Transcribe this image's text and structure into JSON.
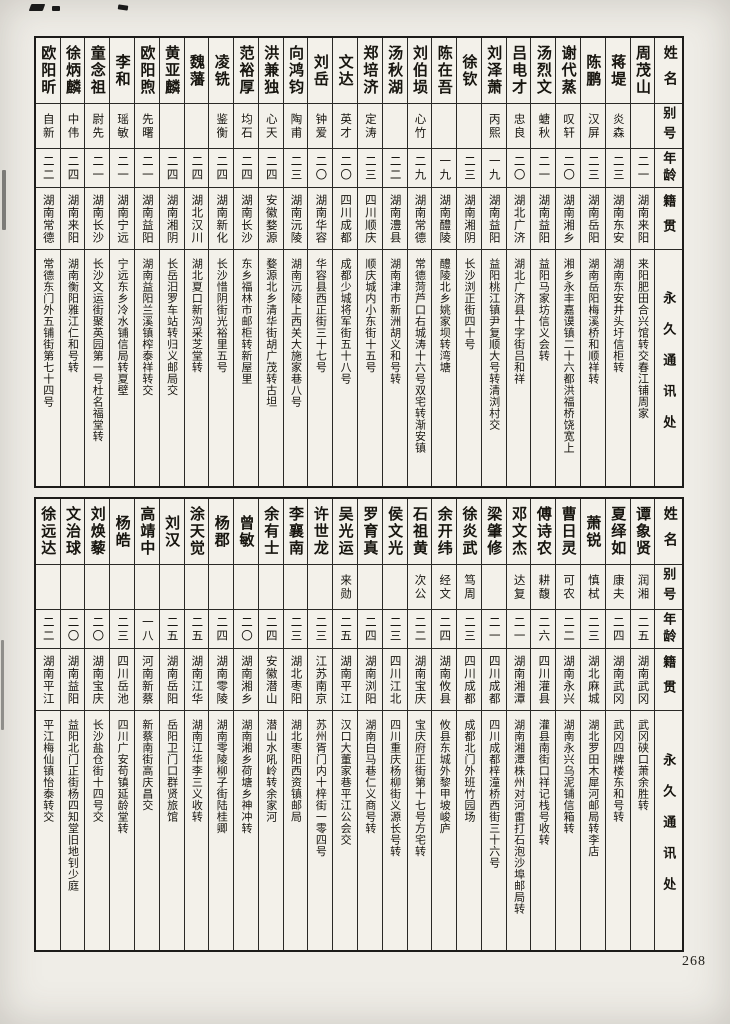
{
  "page": {
    "number": "268"
  },
  "headers": {
    "name": "姓名",
    "alias": "别号",
    "age": "年龄",
    "origin": "籍贯",
    "address": "永久通讯处"
  },
  "tables": [
    {
      "entries": [
        {
          "name": "周茂山",
          "alias": "",
          "age": "二一",
          "origin": "湖南来阳",
          "address": "来阳肥田合兴馆转交春江铺周家"
        },
        {
          "name": "蒋堤",
          "alias": "炎森",
          "age": "二三",
          "origin": "湖南东安",
          "address": "湖南东安井头圩信柜转"
        },
        {
          "name": "陈鹏",
          "alias": "汉屏",
          "age": "二三",
          "origin": "湖南岳阳",
          "address": "湖南岳阳梅溪桥和顺祥转"
        },
        {
          "name": "谢代蒸",
          "alias": "叹轩",
          "age": "二〇",
          "origin": "湖南湘乡",
          "address": "湘乡永丰嘉谟镇二十六都洪福桥饶宽上"
        },
        {
          "name": "汤烈文",
          "alias": "螗秋",
          "age": "二一",
          "origin": "湖南益阳",
          "address": "益阳马家坊信义会转"
        },
        {
          "name": "吕电才",
          "alias": "忠良",
          "age": "二〇",
          "origin": "湖北广济",
          "address": "湖北广济县十字街吕和祥"
        },
        {
          "name": "刘泽萧",
          "alias": "丙熙",
          "age": "一九",
          "origin": "湖南益阳",
          "address": "益阳桃江镇尹复顺大号转清浏村交"
        },
        {
          "name": "徐钦",
          "alias": "",
          "age": "二三",
          "origin": "湖南湘阴",
          "address": "长沙浏正街四十号"
        },
        {
          "name": "陈在吾",
          "alias": "",
          "age": "一九",
          "origin": "湖南醴陵",
          "address": "醴陵北乡姚家坝转湾塘"
        },
        {
          "name": "刘伯埙",
          "alias": "心竹",
          "age": "二九",
          "origin": "湖南常德",
          "address": "常德菏芦口右城涛十六号双宅转渐安镇"
        },
        {
          "name": "汤秋湖",
          "alias": "",
          "age": "二二",
          "origin": "湖南澧县",
          "address": "湖南津市新洲胡义和号转"
        },
        {
          "name": "郑培济",
          "alias": "定涛",
          "age": "二三",
          "origin": "四川顺庆",
          "address": "顺庆城内小东街十五号"
        },
        {
          "name": "文达",
          "alias": "英才",
          "age": "二〇",
          "origin": "四川成都",
          "address": "成都少城将军街五十八号"
        },
        {
          "name": "刘岳",
          "alias": "钟爱",
          "age": "二〇",
          "origin": "湖南华容",
          "address": "华容县西正街三十七号"
        },
        {
          "name": "向鸿钧",
          "alias": "陶甫",
          "age": "二三",
          "origin": "湖南沅陵",
          "address": "湖南沅陵上西关大施家巷八号"
        },
        {
          "name": "洪兼独",
          "alias": "心天",
          "age": "二四",
          "origin": "安徽婺源",
          "address": "婺源北乡清华街胡广茂转古坦"
        },
        {
          "name": "范裕厚",
          "alias": "均石",
          "age": "二四",
          "origin": "湖南长沙",
          "address": "东乡福林市邮柜转新屋里"
        },
        {
          "name": "凌铣",
          "alias": "鉴衡",
          "age": "二四",
          "origin": "湖南新化",
          "address": "长沙惜阴街光裕里五号"
        },
        {
          "name": "魏藩",
          "alias": "",
          "age": "二四",
          "origin": "湖北汉川",
          "address": "湖北夏口新沟采芝堂转"
        },
        {
          "name": "黄亚麟",
          "alias": "",
          "age": "二四",
          "origin": "湖南湘阴",
          "address": "长岳汨罗车站转归义邮局交"
        },
        {
          "name": "欧阳煦",
          "alias": "先曙",
          "age": "二一",
          "origin": "湖南益阳",
          "address": "湖南益阳兰溪镇榨泰祥转交"
        },
        {
          "name": "李和",
          "alias": "瑶敏",
          "age": "二一",
          "origin": "湖南宁远",
          "address": "宁远东乡冷水铺信局转夏壁"
        },
        {
          "name": "童念祖",
          "alias": "尉先",
          "age": "二一",
          "origin": "湖南长沙",
          "address": "长沙文运街聚英园第一号杜名福堂转"
        },
        {
          "name": "徐炳麟",
          "alias": "中伟",
          "age": "二四",
          "origin": "湖南来阳",
          "address": "湖南衡阳雅江仁和号转"
        },
        {
          "name": "欧阳昕",
          "alias": "自新",
          "age": "二二",
          "origin": "湖南常德",
          "address": "常德东门外五铺街第七十四号"
        }
      ]
    },
    {
      "entries": [
        {
          "name": "谭象贤",
          "alias": "润湘",
          "age": "二五",
          "origin": "湖南武冈",
          "address": "武冈硖口萧余胜转"
        },
        {
          "name": "夏绎如",
          "alias": "康夫",
          "age": "二四",
          "origin": "湖南武冈",
          "address": "武冈四牌楼东和号转"
        },
        {
          "name": "萧锐",
          "alias": "慎栻",
          "age": "二三",
          "origin": "湖北麻城",
          "address": "湖北罗田木犀河邮局转李店"
        },
        {
          "name": "曹日灵",
          "alias": "可农",
          "age": "二二",
          "origin": "湖南永兴",
          "address": "湖南永兴乌泥铺信箱转"
        },
        {
          "name": "傅诗农",
          "alias": "耕馥",
          "age": "二六",
          "origin": "四川灌县",
          "address": "灌县南街口祥记栈号收转"
        },
        {
          "name": "邓文杰",
          "alias": "达复",
          "age": "二一",
          "origin": "湖南湘潭",
          "address": "湖南湘潭株州对河雷打石泡沙埠邮局转"
        },
        {
          "name": "梁肇修",
          "alias": "",
          "age": "二一",
          "origin": "四川成都",
          "address": "四川成都梓潼桥西街三十六号"
        },
        {
          "name": "徐炎武",
          "alias": "笃周",
          "age": "二三",
          "origin": "四川成都",
          "address": "成都北门外班竹园场"
        },
        {
          "name": "余开纬",
          "alias": "经文",
          "age": "二四",
          "origin": "湖南攸县",
          "address": "攸县东城外黎甲坡峻庐"
        },
        {
          "name": "石祖黄",
          "alias": "次公",
          "age": "二二",
          "origin": "湖南宝庆",
          "address": "宝庆府正街第十七号方宅转"
        },
        {
          "name": "侯文光",
          "alias": "",
          "age": "二三",
          "origin": "四川江北",
          "address": "四川重庆杨柳街义源长号转"
        },
        {
          "name": "罗育真",
          "alias": "",
          "age": "二四",
          "origin": "湖南浏阳",
          "address": "湖南白马巷仁义商号转"
        },
        {
          "name": "吴光运",
          "alias": "来勋",
          "age": "二五",
          "origin": "湖南平江",
          "address": "汉口大董家巷平江公会交"
        },
        {
          "name": "许世龙",
          "alias": "",
          "age": "二三",
          "origin": "江苏南京",
          "address": "苏州胥门内十梓街一零四号"
        },
        {
          "name": "李襄南",
          "alias": "",
          "age": "二三",
          "origin": "湖北枣阳",
          "address": "湖北枣阳西资镇邮局"
        },
        {
          "name": "余有士",
          "alias": "",
          "age": "二四",
          "origin": "安徽潜山",
          "address": "潜山水吼岭转余家河"
        },
        {
          "name": "曾敏",
          "alias": "",
          "age": "二〇",
          "origin": "湖南湘乡",
          "address": "湖南湘乡荷塘乡神冲转"
        },
        {
          "name": "杨郡",
          "alias": "",
          "age": "二四",
          "origin": "湖南零陵",
          "address": "湖南零陵柳子街陆桂卿"
        },
        {
          "name": "涂天觉",
          "alias": "",
          "age": "二五",
          "origin": "湖南江华",
          "address": "湖南江华李三义收转"
        },
        {
          "name": "刘汉",
          "alias": "",
          "age": "二五",
          "origin": "湖南岳阳",
          "address": "岳阳卫门口群贤旅馆"
        },
        {
          "name": "高靖中",
          "alias": "",
          "age": "一八",
          "origin": "河南新蔡",
          "address": "新蔡南街高庆昌交"
        },
        {
          "name": "杨皓",
          "alias": "",
          "age": "二三",
          "origin": "四川岳池",
          "address": "四川广安苟镇延龄堂转"
        },
        {
          "name": "刘焕藜",
          "alias": "",
          "age": "二〇",
          "origin": "湖南宝庆",
          "address": "长沙盐仓街十四号交"
        },
        {
          "name": "文治球",
          "alias": "",
          "age": "二〇",
          "origin": "湖南益阳",
          "address": "益阳北门正街杨四知堂旧地钊少庭"
        },
        {
          "name": "徐远达",
          "alias": "",
          "age": "二二",
          "origin": "湖南平江",
          "address": "平江梅仙镇怡泰转交"
        }
      ]
    }
  ]
}
